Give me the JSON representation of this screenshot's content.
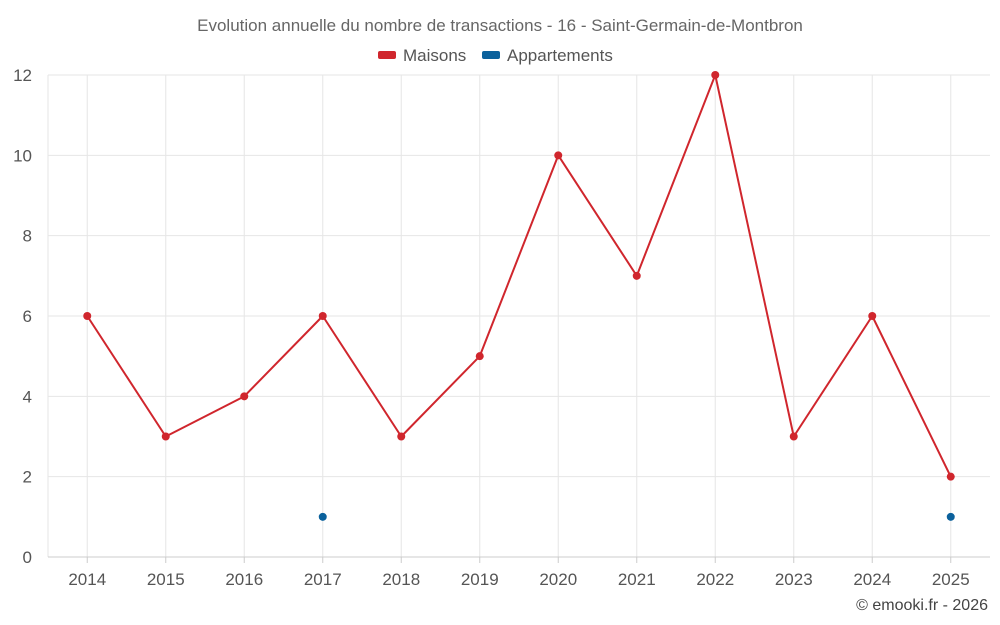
{
  "chart_data": {
    "type": "line",
    "title": "Evolution annuelle du nombre de transactions - 16 - Saint-Germain-de-Montbron",
    "categories": [
      "2014",
      "2015",
      "2016",
      "2017",
      "2018",
      "2019",
      "2020",
      "2021",
      "2022",
      "2023",
      "2024",
      "2025"
    ],
    "series": [
      {
        "name": "Maisons",
        "color": "#d0262d",
        "values": [
          6,
          3,
          4,
          6,
          3,
          5,
          10,
          7,
          12,
          3,
          6,
          2
        ],
        "line": true
      },
      {
        "name": "Appartements",
        "color": "#0b619c",
        "values": [
          null,
          null,
          null,
          1,
          null,
          null,
          null,
          null,
          null,
          null,
          null,
          1
        ],
        "line": false
      }
    ],
    "ylim": [
      0,
      12
    ],
    "yticks": [
      "0",
      "2",
      "4",
      "6",
      "8",
      "10",
      "12"
    ],
    "ytick_values": [
      0,
      2,
      4,
      6,
      8,
      10,
      12
    ],
    "xlabel": "",
    "ylabel": "",
    "grid": true,
    "legend_position": "top-center",
    "credit": "© emooki.fr - 2026"
  }
}
